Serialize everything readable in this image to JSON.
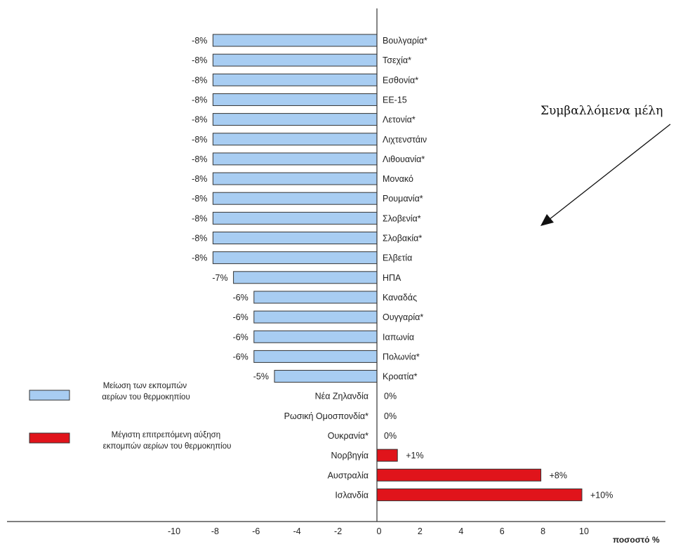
{
  "chart_data": {
    "type": "bar",
    "orientation": "horizontal",
    "categories": [
      "Βουλγαρία*",
      "Τσεχία*",
      "Εσθονία*",
      "ΕΕ-15",
      "Λετονία*",
      "Λιχτενστάιν",
      "Λιθουανία*",
      "Μονακό",
      "Ρουμανία*",
      "Σλοβενία*",
      "Σλοβακία*",
      "Ελβετία",
      "ΗΠΑ",
      "Καναδάς",
      "Ουγγαρία*",
      "Ιαπωνία",
      "Πολωνία*",
      "Κροατία*",
      "Νέα Ζηλανδία",
      "Ρωσική Ομοσπονδία*",
      "Ουκρανία*",
      "Νορβηγία",
      "Αυστραλία",
      "Ισλανδία"
    ],
    "values": [
      -8,
      -8,
      -8,
      -8,
      -8,
      -8,
      -8,
      -8,
      -8,
      -8,
      -8,
      -8,
      -7,
      -6,
      -6,
      -6,
      -6,
      -5,
      0,
      0,
      0,
      1,
      8,
      10
    ],
    "value_labels": [
      "-8%",
      "-8%",
      "-8%",
      "-8%",
      "-8%",
      "-8%",
      "-8%",
      "-8%",
      "-8%",
      "-8%",
      "-8%",
      "-8%",
      "-7%",
      "-6%",
      "-6%",
      "-6%",
      "-6%",
      "-5%",
      "0%",
      "0%",
      "0%",
      "+1%",
      "+8%",
      "+10%"
    ],
    "series": [
      {
        "name": "Μείωση των εκπομπών αερίων του θερμοκηπίου",
        "color": "#a8cdf2"
      },
      {
        "name": "Μέγιστη επιτρεπόμενη αύξηση εκπομπών αερίων του θερμοκηπίου",
        "color": "#e0141b"
      }
    ],
    "xlim": [
      -10,
      10
    ],
    "x_ticks": [
      "-10",
      "-8",
      "-6",
      "-4",
      "-2",
      "0",
      "2",
      "4",
      "6",
      "8",
      "10"
    ],
    "xlabel": "ποσοστό %",
    "title": "",
    "grid": false,
    "legend_placement": "bottom-left",
    "annotation": "Συμβαλλόμενα μέλη"
  }
}
